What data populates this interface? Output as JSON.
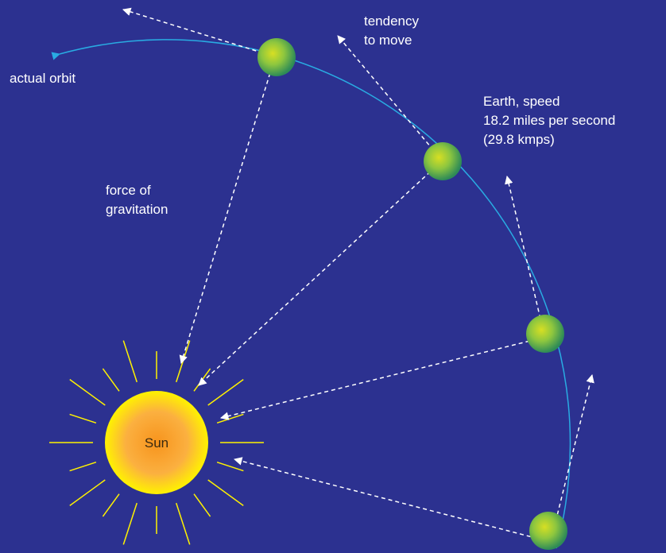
{
  "annotations": {
    "tendency": [
      "tendency",
      "to move"
    ],
    "actual_orbit": "actual orbit",
    "earth": [
      "Earth, speed",
      "18.2 miles per second",
      "(29.8 kmps)"
    ],
    "gravitation": [
      "force of",
      "gravitation"
    ]
  },
  "sun": {
    "label": "Sun"
  }
}
